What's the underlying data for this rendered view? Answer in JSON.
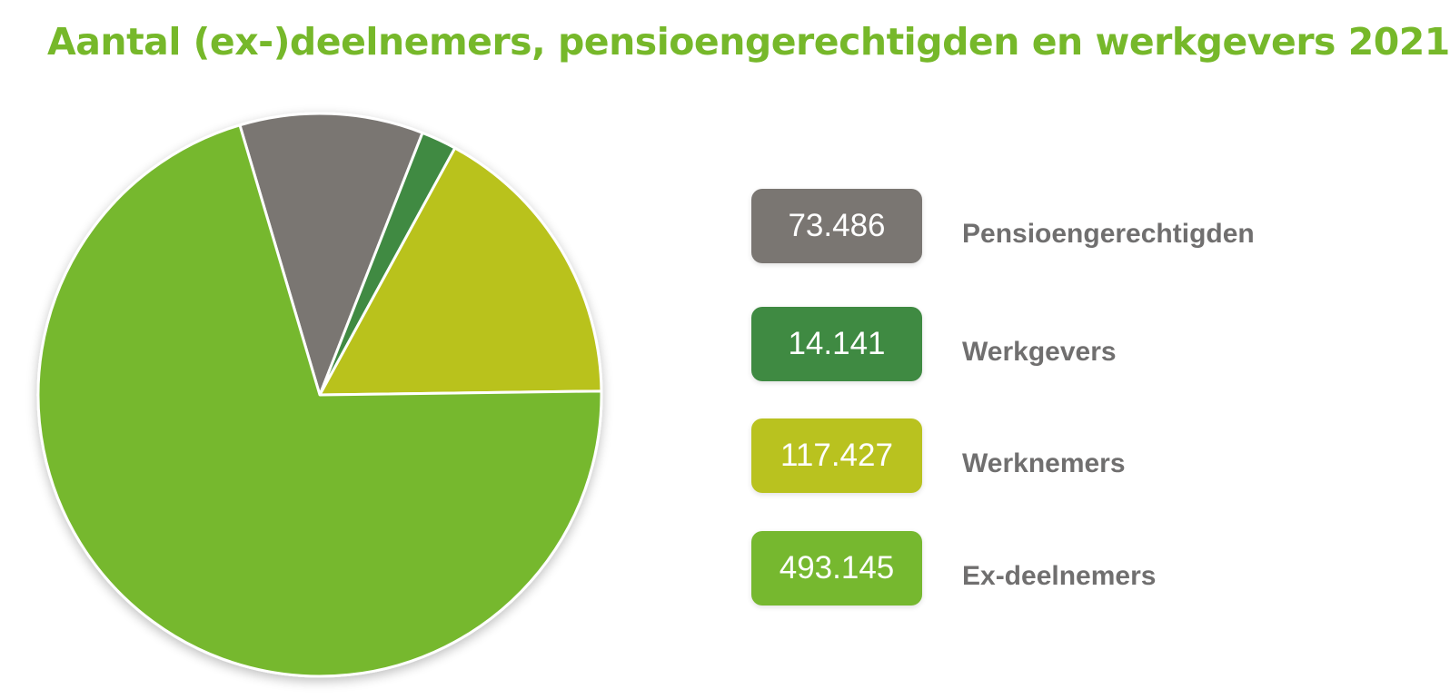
{
  "title": "Aantal (ex-)deelnemers, pensioengerechtigden en werkgevers 2021",
  "colors": {
    "title": "#76b82a",
    "label_text": "#706f6f",
    "slice_border": "#ffffff"
  },
  "chart_data": {
    "type": "pie",
    "title": "Aantal (ex-)deelnemers, pensioengerechtigden en werkgevers 2021",
    "slices": [
      {
        "label": "Pensioengerechtigden",
        "value": 73486,
        "display": "73.486",
        "color": "#7a7672"
      },
      {
        "label": "Werkgevers",
        "value": 14141,
        "display": "14.141",
        "color": "#3f8a42"
      },
      {
        "label": "Werknemers",
        "value": 117427,
        "display": "117.427",
        "color": "#b9c21f"
      },
      {
        "label": "Ex-deelnemers",
        "value": 493145,
        "display": "493.145",
        "color": "#76b82f"
      }
    ],
    "start_angle_deg": -16.5,
    "direction": "clockwise",
    "legend_position": "right"
  }
}
